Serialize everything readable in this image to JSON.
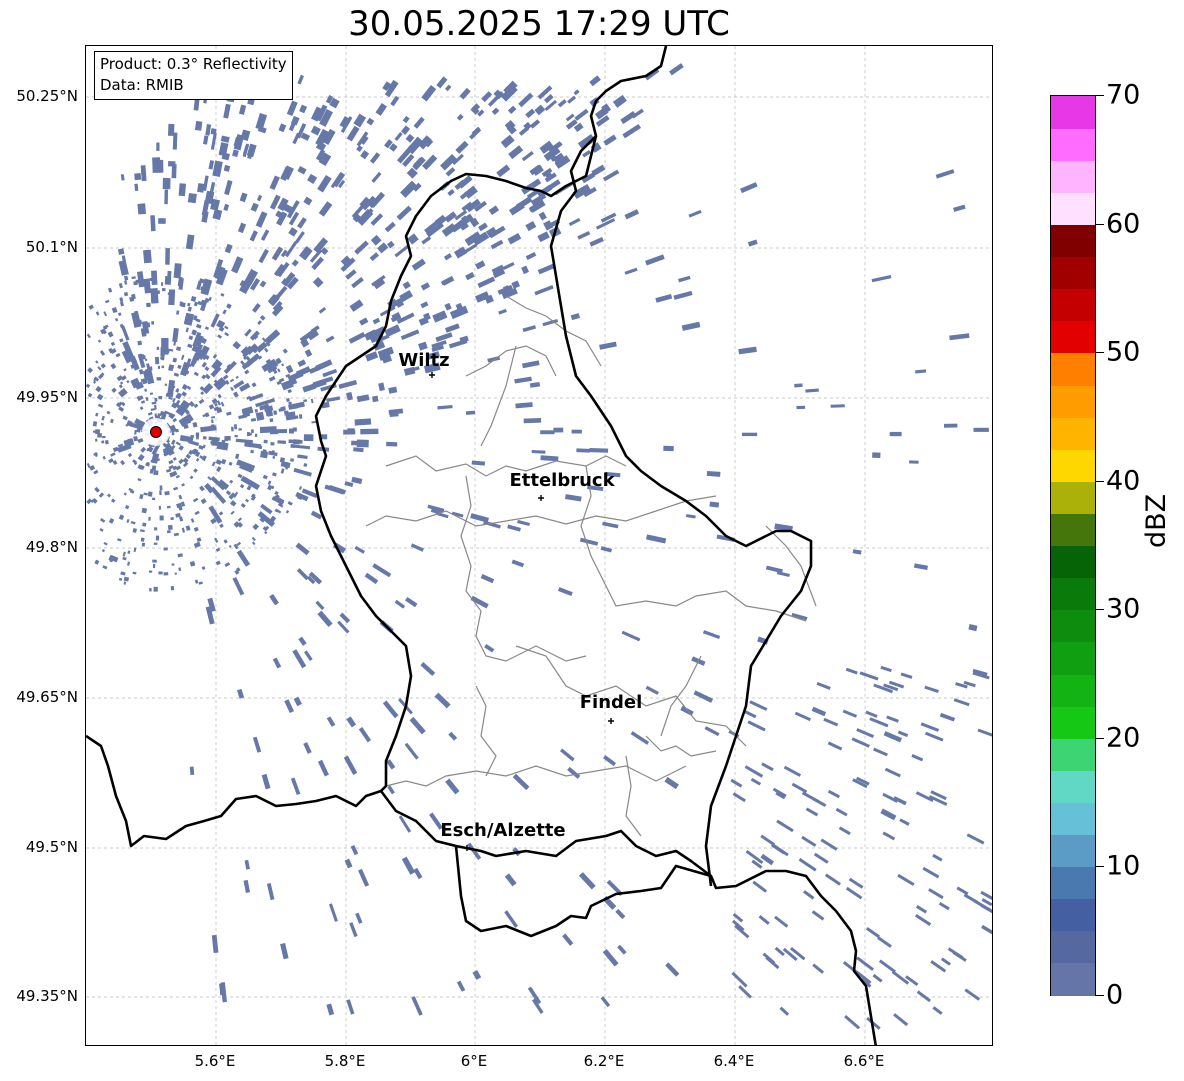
{
  "title": "30.05.2025 17:29 UTC",
  "info_box": {
    "product": "Product: 0.3° Reflectivity",
    "data": "Data: RMIB"
  },
  "axes": {
    "lat_labels": [
      "50.25°N",
      "50.1°N",
      "49.95°N",
      "49.8°N",
      "49.65°N",
      "49.5°N",
      "49.35°N"
    ],
    "lon_labels": [
      "5.6°E",
      "5.8°E",
      "6°E",
      "6.2°E",
      "6.4°E",
      "6.6°E"
    ]
  },
  "cities": [
    {
      "name": "Wiltz"
    },
    {
      "name": "Ettelbruck"
    },
    {
      "name": "Findel"
    },
    {
      "name": "Esch/Alzette"
    }
  ],
  "colorbar": {
    "label": "dBZ",
    "tick_labels": [
      "0",
      "10",
      "20",
      "30",
      "40",
      "50",
      "60",
      "70"
    ],
    "min": 0,
    "max": 70,
    "colors": [
      "#6675a8",
      "#55689f",
      "#4460a2",
      "#4a79b0",
      "#5a9cc6",
      "#66c0d8",
      "#60d8c5",
      "#3dd473",
      "#15c815",
      "#13b313",
      "#109f10",
      "#0e8c0e",
      "#0a7a0a",
      "#066406",
      "#45760b",
      "#acb10a",
      "#ffd700",
      "#ffb400",
      "#ff9c00",
      "#ff7f00",
      "#e20000",
      "#c40000",
      "#a00000",
      "#800000",
      "#ffe0ff",
      "#ffb4ff",
      "#ff6cff",
      "#e638e6"
    ]
  },
  "colors": {
    "echo": "#6678a8",
    "border": "#000000",
    "canton": "#888888",
    "radar_site": "#e00000"
  }
}
